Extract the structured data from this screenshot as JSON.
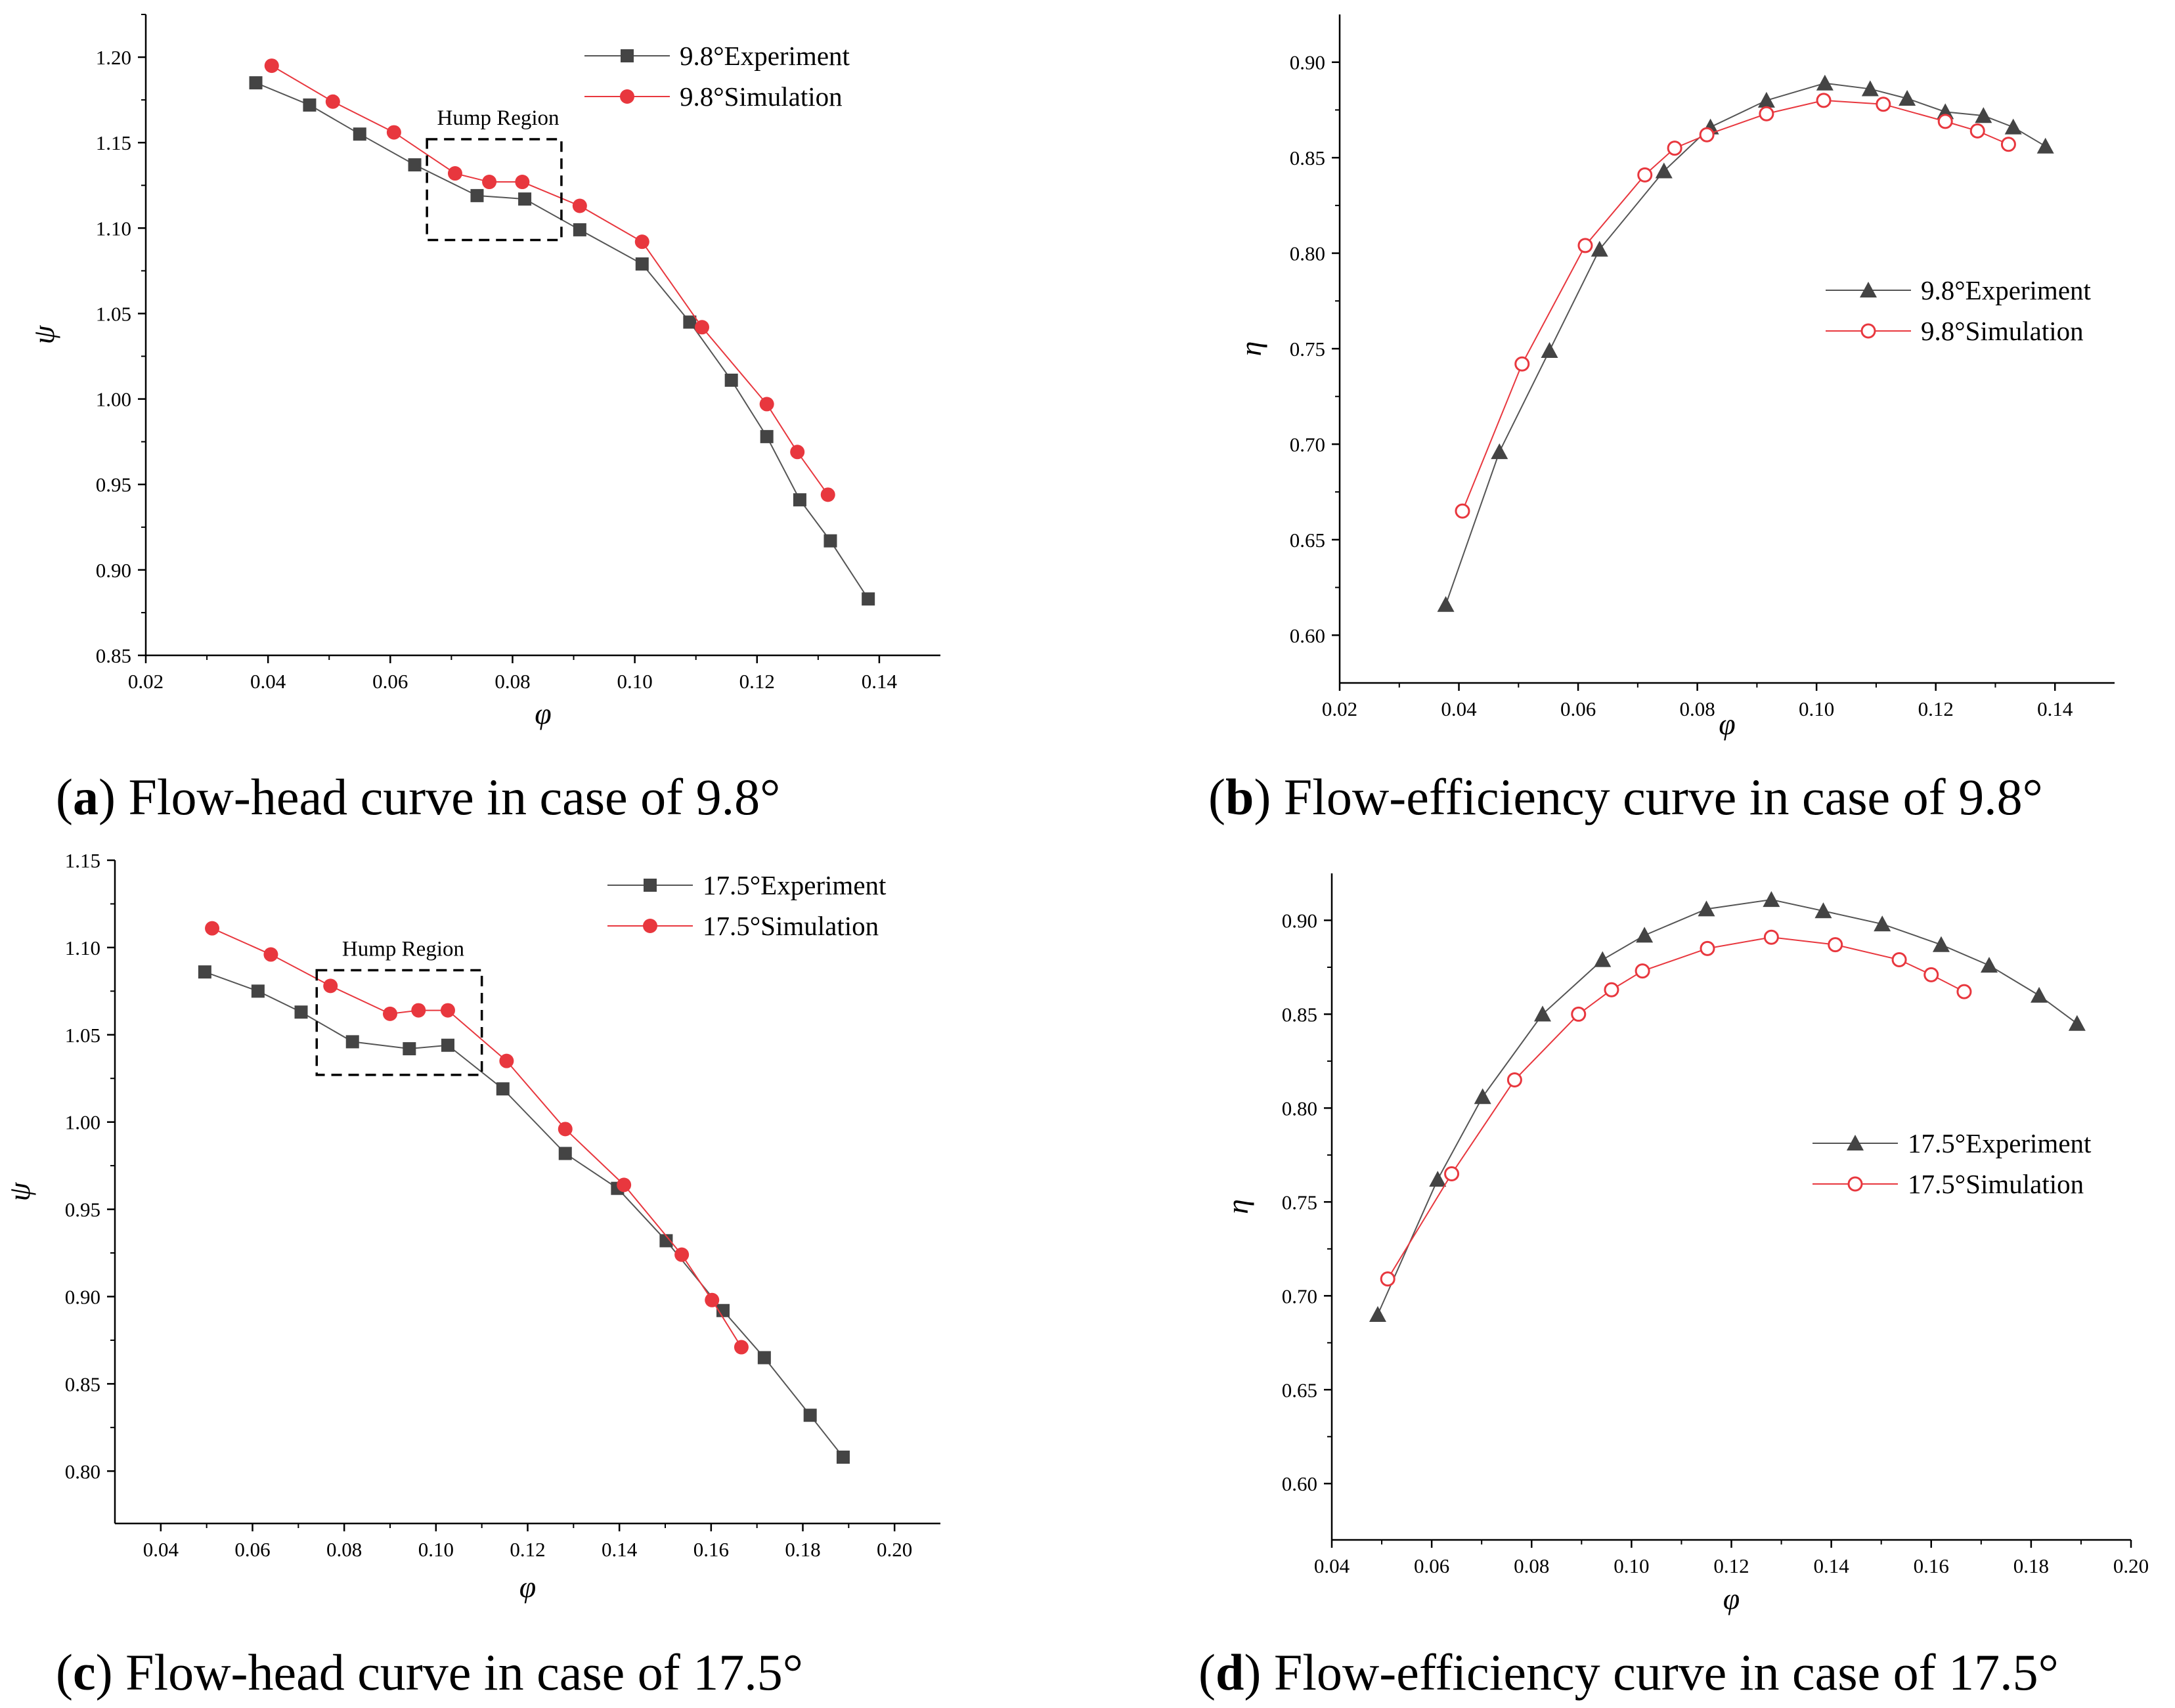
{
  "colors": {
    "experiment": "#444444",
    "experiment_line": "#555555",
    "simulation": "#e8373e",
    "simulation_line": "#e8373e",
    "axis": "#000000"
  },
  "chart_data": [
    {
      "id": "a",
      "type": "line",
      "caption": {
        "letter": "a",
        "text": "Flow-head curve in case of 9.8°"
      },
      "xlabel": "φ",
      "ylabel": "ψ",
      "xlim": [
        0.02,
        0.15
      ],
      "ylim": [
        0.85,
        1.225
      ],
      "xticks": [
        "0.02",
        "0.04",
        "0.06",
        "0.08",
        "0.10",
        "0.12",
        "0.14"
      ],
      "yticks": [
        "0.85",
        "0.90",
        "0.95",
        "1.00",
        "1.05",
        "1.10",
        "1.15",
        "1.20"
      ],
      "legend_position": "top-right",
      "series": [
        {
          "name": "9.8°Experiment",
          "marker": "square",
          "x": [
            0.038,
            0.0468,
            0.055,
            0.064,
            0.0742,
            0.082,
            0.091,
            0.1012,
            0.109,
            0.1158,
            0.1216,
            0.127,
            0.132,
            0.1382
          ],
          "y": [
            1.185,
            1.172,
            1.155,
            1.137,
            1.119,
            1.117,
            1.099,
            1.079,
            1.045,
            1.011,
            0.978,
            0.941,
            0.917,
            0.883
          ]
        },
        {
          "name": "9.8°Simulation",
          "marker": "circle-filled",
          "x": [
            0.0406,
            0.0506,
            0.0606,
            0.0706,
            0.0762,
            0.0816,
            0.091,
            0.1012,
            0.111,
            0.1216,
            0.1266,
            0.1316
          ],
          "y": [
            1.195,
            1.174,
            1.156,
            1.132,
            1.127,
            1.127,
            1.113,
            1.092,
            1.042,
            0.997,
            0.969,
            0.944
          ]
        }
      ],
      "annotations": [
        {
          "text": "Hump Region",
          "box_x": [
            0.066,
            0.088
          ],
          "box_y": [
            1.093,
            1.152
          ]
        }
      ]
    },
    {
      "id": "b",
      "type": "line",
      "caption": {
        "letter": "b",
        "text": "Flow-efficiency curve in case of 9.8°"
      },
      "xlabel": "φ",
      "ylabel": "η",
      "xlim": [
        0.02,
        0.15
      ],
      "ylim": [
        0.575,
        0.925
      ],
      "xticks": [
        "0.02",
        "0.04",
        "0.06",
        "0.08",
        "0.10",
        "0.12",
        "0.14"
      ],
      "yticks": [
        "0.60",
        "0.65",
        "0.70",
        "0.75",
        "0.80",
        "0.85",
        "0.90"
      ],
      "legend_position": "center-right",
      "series": [
        {
          "name": "9.8°Experiment",
          "marker": "triangle",
          "x": [
            0.0378,
            0.0468,
            0.0552,
            0.0636,
            0.0744,
            0.0822,
            0.0916,
            0.1014,
            0.109,
            0.1152,
            0.1216,
            0.128,
            0.133,
            0.1384
          ],
          "y": [
            0.616,
            0.696,
            0.749,
            0.802,
            0.843,
            0.866,
            0.88,
            0.889,
            0.886,
            0.881,
            0.874,
            0.872,
            0.866,
            0.856
          ]
        },
        {
          "name": "9.8°Simulation",
          "marker": "circle-open",
          "x": [
            0.0406,
            0.0506,
            0.0612,
            0.0712,
            0.0762,
            0.0816,
            0.0916,
            0.1012,
            0.1112,
            0.1216,
            0.127,
            0.1322
          ],
          "y": [
            0.665,
            0.742,
            0.804,
            0.841,
            0.855,
            0.862,
            0.873,
            0.88,
            0.878,
            0.869,
            0.864,
            0.857
          ]
        }
      ]
    },
    {
      "id": "c",
      "type": "line",
      "caption": {
        "letter": "c",
        "text": "Flow-head curve in case of 17.5°"
      },
      "xlabel": "φ",
      "ylabel": "ψ",
      "xlim": [
        0.03,
        0.21
      ],
      "ylim": [
        0.77,
        1.15
      ],
      "xticks": [
        "0.04",
        "0.06",
        "0.08",
        "0.10",
        "0.12",
        "0.14",
        "0.16",
        "0.18",
        "0.20"
      ],
      "yticks": [
        "0.80",
        "0.85",
        "0.90",
        "0.95",
        "1.00",
        "1.05",
        "1.10",
        "1.15"
      ],
      "legend_position": "top-right",
      "series": [
        {
          "name": "17.5°Experiment",
          "marker": "square",
          "x": [
            0.0496,
            0.0612,
            0.0706,
            0.0818,
            0.0942,
            0.1026,
            0.1146,
            0.1282,
            0.1396,
            0.1502,
            0.1626,
            0.1716,
            0.1816,
            0.1888
          ],
          "y": [
            1.086,
            1.075,
            1.063,
            1.046,
            1.042,
            1.044,
            1.019,
            0.982,
            0.962,
            0.932,
            0.892,
            0.865,
            0.832,
            0.808
          ]
        },
        {
          "name": "17.5°Simulation",
          "marker": "circle-filled",
          "x": [
            0.0512,
            0.064,
            0.077,
            0.09,
            0.0962,
            0.1026,
            0.1154,
            0.1282,
            0.141,
            0.1536,
            0.1602,
            0.1666
          ],
          "y": [
            1.111,
            1.096,
            1.078,
            1.062,
            1.064,
            1.064,
            1.035,
            0.996,
            0.964,
            0.924,
            0.898,
            0.871
          ]
        }
      ],
      "annotations": [
        {
          "text": "Hump Region",
          "box_x": [
            0.074,
            0.11
          ],
          "box_y": [
            1.027,
            1.087
          ]
        }
      ]
    },
    {
      "id": "d",
      "type": "line",
      "caption": {
        "letter": "d",
        "text": "Flow-efficiency curve in case of 17.5°"
      },
      "xlabel": "φ",
      "ylabel": "η",
      "xlim": [
        0.04,
        0.2
      ],
      "ylim": [
        0.57,
        0.925
      ],
      "xticks": [
        "0.04",
        "0.06",
        "0.08",
        "0.10",
        "0.12",
        "0.14",
        "0.16",
        "0.18",
        "0.20"
      ],
      "yticks": [
        "0.60",
        "0.65",
        "0.70",
        "0.75",
        "0.80",
        "0.85",
        "0.90"
      ],
      "legend_position": "center-right",
      "series": [
        {
          "name": "17.5°Experiment",
          "marker": "triangle",
          "x": [
            0.0492,
            0.0612,
            0.0702,
            0.0822,
            0.0942,
            0.1026,
            0.115,
            0.128,
            0.1384,
            0.1502,
            0.162,
            0.1716,
            0.1816,
            0.1892
          ],
          "y": [
            0.69,
            0.762,
            0.806,
            0.85,
            0.879,
            0.892,
            0.906,
            0.911,
            0.905,
            0.898,
            0.887,
            0.876,
            0.86,
            0.845
          ]
        },
        {
          "name": "17.5°Simulation",
          "marker": "circle-open",
          "x": [
            0.0512,
            0.064,
            0.0766,
            0.0894,
            0.096,
            0.1022,
            0.1152,
            0.128,
            0.1408,
            0.1536,
            0.16,
            0.1666
          ],
          "y": [
            0.709,
            0.765,
            0.815,
            0.85,
            0.863,
            0.873,
            0.885,
            0.891,
            0.887,
            0.879,
            0.871,
            0.862
          ]
        }
      ]
    }
  ]
}
